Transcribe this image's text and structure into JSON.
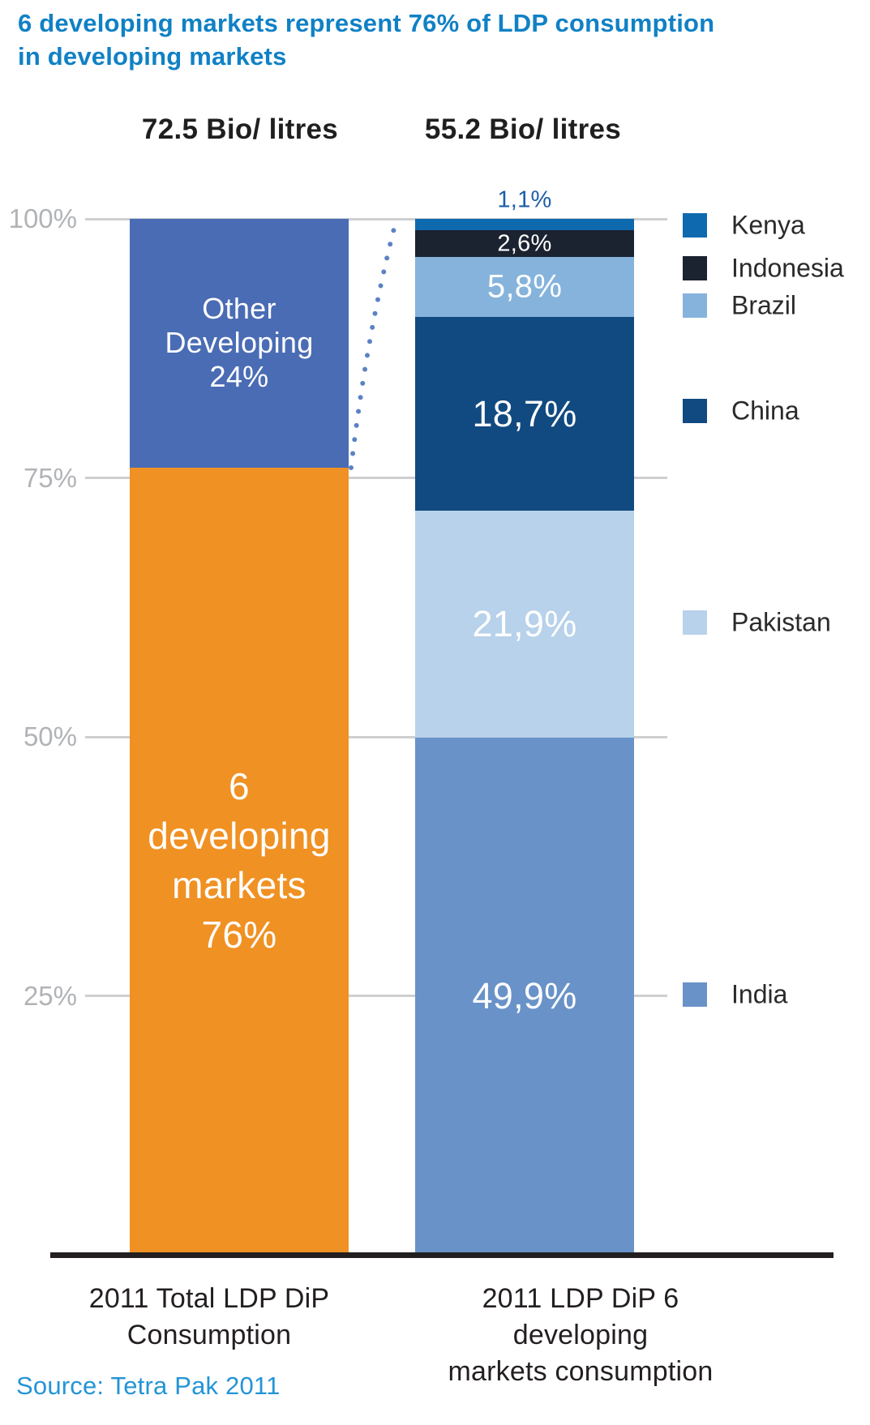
{
  "title": "6 developing markets represent 76% of LDP consumption\nin developing markets",
  "source": "Source: Tetra Pak 2011",
  "colors": {
    "title_blue": "#1081C5",
    "source_blue": "#2395D6",
    "axis_tick_gray": "#B1B3B6",
    "gridline_gray": "#CDCFD0",
    "baseline_black": "#231F20",
    "connector_dotted_blue": "#5B82C4",
    "outside_label_blue": "#1E5EA7"
  },
  "chart_data": {
    "type": "bar",
    "subtype": "100-percent-stacked-columns",
    "title": "6 developing markets represent 76% of LDP consumption in developing markets",
    "ylabel": "",
    "xlabel": "",
    "ylim": [
      0,
      100
    ],
    "grid": true,
    "legend_position": "right",
    "yticks": [
      {
        "value": 100,
        "label": "100%"
      },
      {
        "value": 75,
        "label": "75%"
      },
      {
        "value": 50,
        "label": "50%"
      },
      {
        "value": 25,
        "label": "25%"
      }
    ],
    "bars": [
      {
        "category": "2011 Total LDP DiP Consumption",
        "category_lines": "2011 Total LDP DiP\nConsumption",
        "total_label": "72.5 Bio/ litres",
        "total_bio_litres": 72.5,
        "segments": [
          {
            "name": "6 developing markets",
            "value_pct": 76,
            "label": "6\ndeveloping\nmarkets\n76%",
            "color": "#F09123",
            "label_color": "#FFFFFF"
          },
          {
            "name": "Other Developing",
            "value_pct": 24,
            "label": "Other\nDeveloping\n24%",
            "color": "#4A6CB4",
            "label_color": "#FFFFFF"
          }
        ]
      },
      {
        "category": "2011 LDP DiP 6 developing markets consumption",
        "category_lines": "2011 LDP DiP 6 developing\nmarkets consumption",
        "total_label": "55.2 Bio/ litres",
        "total_bio_litres": 55.2,
        "segments": [
          {
            "name": "India",
            "value_pct": 49.9,
            "label": "49,9%",
            "color": "#6992C8",
            "label_color": "#FFFFFF"
          },
          {
            "name": "Pakistan",
            "value_pct": 21.9,
            "label": "21,9%",
            "color": "#B7D2EA",
            "label_color": "#FFFFFF"
          },
          {
            "name": "China",
            "value_pct": 18.7,
            "label": "18,7%",
            "color": "#114A80",
            "label_color": "#FFFFFF"
          },
          {
            "name": "Brazil",
            "value_pct": 5.8,
            "label": "5,8%",
            "color": "#85B3DC",
            "label_color": "#FFFFFF"
          },
          {
            "name": "Indonesia",
            "value_pct": 2.6,
            "label": "2,6%",
            "color": "#1B2230",
            "label_color": "#FFFFFF"
          },
          {
            "name": "Kenya",
            "value_pct": 1.1,
            "label": "1,1%",
            "color": "#0F69AF",
            "label_color": "#1E5EA7",
            "label_outside": true
          }
        ]
      }
    ],
    "legend": [
      {
        "label": "Kenya",
        "color": "#0F69AF"
      },
      {
        "label": "Indonesia",
        "color": "#1B2230"
      },
      {
        "label": "Brazil",
        "color": "#85B3DC"
      },
      {
        "label": "China",
        "color": "#114A80"
      },
      {
        "label": "Pakistan",
        "color": "#B7D2EA"
      },
      {
        "label": "India",
        "color": "#6992C8"
      }
    ],
    "annotations": [
      {
        "type": "dotted-connector",
        "from": "76% level of total bar",
        "to": "100% level of 6-markets bar"
      }
    ]
  }
}
